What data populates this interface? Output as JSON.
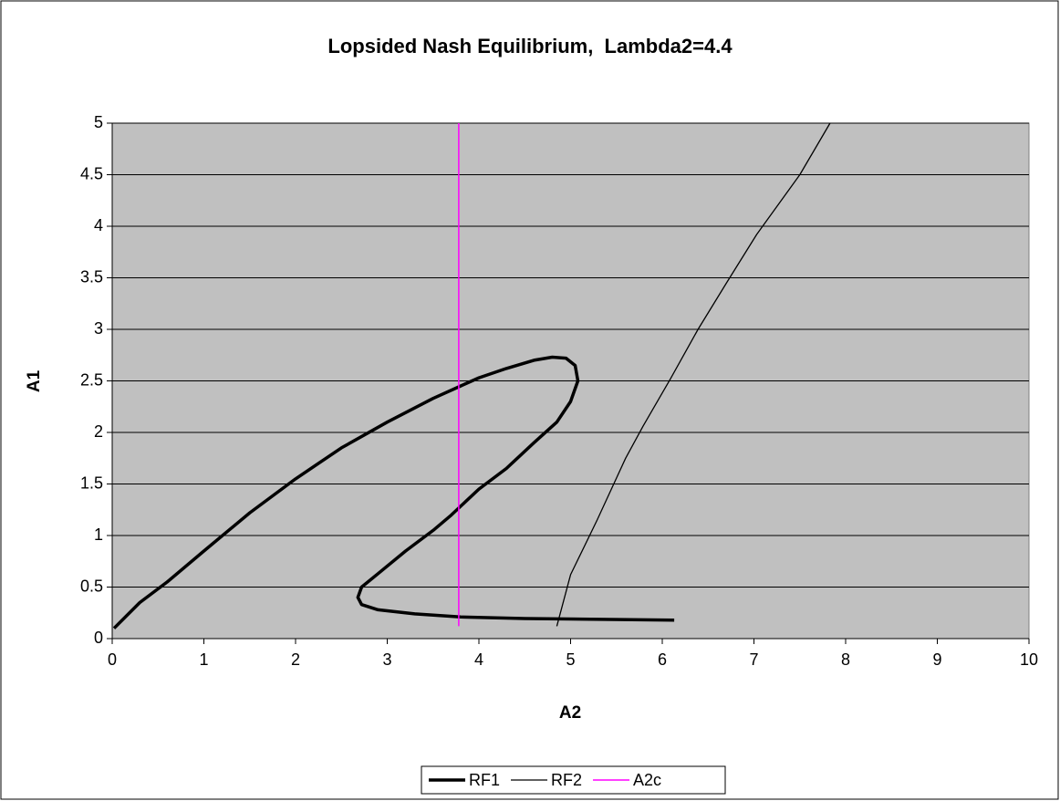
{
  "chart_data": {
    "type": "line",
    "title": "Lopsided Nash Equilibrium,  Lambda2=4.4",
    "x_label": "A2",
    "y_label": "A1",
    "xlim": [
      0,
      10
    ],
    "ylim": [
      0,
      5
    ],
    "xticks": [
      0,
      1,
      2,
      3,
      4,
      5,
      6,
      7,
      8,
      9,
      10
    ],
    "yticks": [
      0,
      0.5,
      1,
      1.5,
      2,
      2.5,
      3,
      3.5,
      4,
      4.5,
      5
    ],
    "grid": true,
    "legend": "bottom",
    "plot_background": "#c0c0c0",
    "series": [
      {
        "name": "RF1",
        "color": "#000000",
        "x": [
          0.02,
          0.3,
          0.6,
          1,
          1.5,
          2,
          2.5,
          3,
          3.5,
          3.8,
          4,
          4.3,
          4.6,
          4.8,
          4.95,
          5.05,
          5.08,
          5.0,
          4.85,
          4.6,
          4.3,
          4.0,
          3.7,
          3.5,
          3.2,
          2.9,
          2.72,
          2.68,
          2.72,
          2.9,
          3.3,
          3.8,
          4.5,
          5,
          6.13
        ],
        "values": [
          0.1,
          0.35,
          0.55,
          0.85,
          1.22,
          1.55,
          1.85,
          2.1,
          2.33,
          2.45,
          2.53,
          2.62,
          2.7,
          2.73,
          2.72,
          2.65,
          2.5,
          2.3,
          2.1,
          1.9,
          1.65,
          1.45,
          1.2,
          1.05,
          0.85,
          0.63,
          0.5,
          0.4,
          0.33,
          0.28,
          0.24,
          0.21,
          0.195,
          0.19,
          0.18
        ]
      },
      {
        "name": "RF2",
        "color": "#000000",
        "x": [
          4.85,
          5.0,
          5.29,
          5.6,
          5.79,
          6.09,
          6.39,
          6.7,
          7.03,
          7.5,
          7.83
        ],
        "values": [
          0.12,
          0.62,
          1.15,
          1.75,
          2.06,
          2.52,
          3.0,
          3.45,
          3.92,
          4.5,
          5
        ]
      },
      {
        "name": "A2c",
        "color": "#ff00ff",
        "x": [
          3.78,
          3.78
        ],
        "values": [
          0.12,
          5
        ]
      }
    ]
  }
}
